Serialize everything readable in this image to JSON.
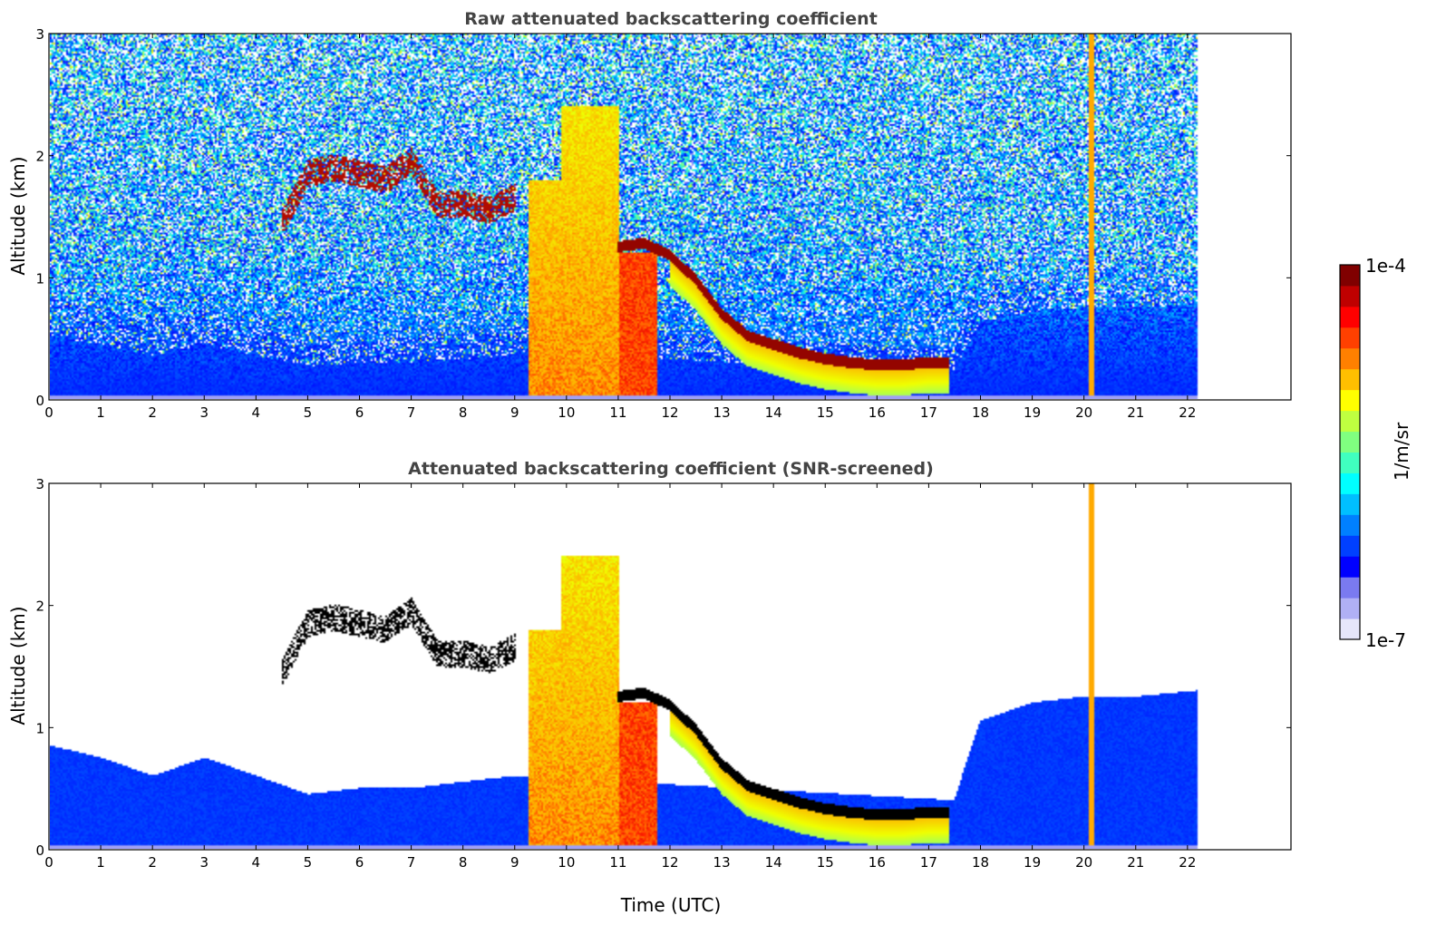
{
  "chart_data": [
    {
      "type": "heatmap",
      "title": "Raw attenuated backscattering coefficient",
      "ylabel": "Altitude (km)",
      "xlabel": "",
      "xlim": [
        0,
        24
      ],
      "ylim": [
        0,
        3
      ],
      "xticks": [
        0,
        1,
        2,
        3,
        4,
        5,
        6,
        7,
        8,
        9,
        10,
        11,
        12,
        13,
        14,
        15,
        16,
        17,
        18,
        19,
        20,
        21,
        22
      ],
      "yticks": [
        0,
        1,
        2,
        3
      ],
      "data_end_time": 22.2,
      "noise_level": 0.35,
      "features": {
        "fog_block": {
          "x": [
            9.25,
            11.0
          ],
          "y": [
            0,
            2.4
          ],
          "value": 0.78
        },
        "cloud_base_layer": [
          [
            11.0,
            1.25
          ],
          [
            11.5,
            1.28
          ],
          [
            12.0,
            1.18
          ],
          [
            12.5,
            0.98
          ],
          [
            13.0,
            0.7
          ],
          [
            13.5,
            0.52
          ],
          [
            14.0,
            0.45
          ],
          [
            14.5,
            0.38
          ],
          [
            15.0,
            0.33
          ],
          [
            15.5,
            0.3
          ],
          [
            16.0,
            0.28
          ],
          [
            16.5,
            0.28
          ],
          [
            17.0,
            0.3
          ],
          [
            17.4,
            0.3
          ]
        ],
        "elevated_layer": [
          [
            4.5,
            1.45
          ],
          [
            5.0,
            1.85
          ],
          [
            5.5,
            1.9
          ],
          [
            6.0,
            1.85
          ],
          [
            6.5,
            1.8
          ],
          [
            7.0,
            1.95
          ],
          [
            7.5,
            1.6
          ],
          [
            8.0,
            1.6
          ],
          [
            8.5,
            1.55
          ],
          [
            9.0,
            1.65
          ]
        ],
        "vertical_spike_time": 20.15
      }
    },
    {
      "type": "heatmap",
      "title": "Attenuated backscattering coefficient (SNR-screened)",
      "ylabel": "Altitude (km)",
      "xlabel": "Time (UTC)",
      "xlim": [
        0,
        24
      ],
      "ylim": [
        0,
        3
      ],
      "xticks": [
        0,
        1,
        2,
        3,
        4,
        5,
        6,
        7,
        8,
        9,
        10,
        11,
        12,
        13,
        14,
        15,
        16,
        17,
        18,
        19,
        20,
        21,
        22
      ],
      "yticks": [
        0,
        1,
        2,
        3
      ],
      "data_end_time": 22.2,
      "noise_level": 0.0,
      "features": {
        "boundary_layer_top": [
          [
            0,
            0.85
          ],
          [
            1,
            0.75
          ],
          [
            2,
            0.6
          ],
          [
            3,
            0.75
          ],
          [
            4,
            0.6
          ],
          [
            5,
            0.45
          ],
          [
            6,
            0.5
          ],
          [
            7,
            0.5
          ],
          [
            8,
            0.55
          ],
          [
            9,
            0.6
          ],
          [
            17.5,
            0.4
          ],
          [
            18,
            1.05
          ],
          [
            19,
            1.2
          ],
          [
            20,
            1.25
          ],
          [
            21,
            1.25
          ],
          [
            22.2,
            1.3
          ]
        ]
      }
    }
  ],
  "colorbar": {
    "label": "1/m/sr",
    "max_label": "1e-4",
    "min_label": "1e-7",
    "colors": [
      "#e6e6fa",
      "#b0b0f5",
      "#7a7af0",
      "#0000ff",
      "#0040ff",
      "#0080ff",
      "#00bfff",
      "#00ffff",
      "#40ffbf",
      "#80ff80",
      "#bfff40",
      "#ffff00",
      "#ffbf00",
      "#ff8000",
      "#ff4000",
      "#ff0000",
      "#bf0000",
      "#800000"
    ]
  }
}
